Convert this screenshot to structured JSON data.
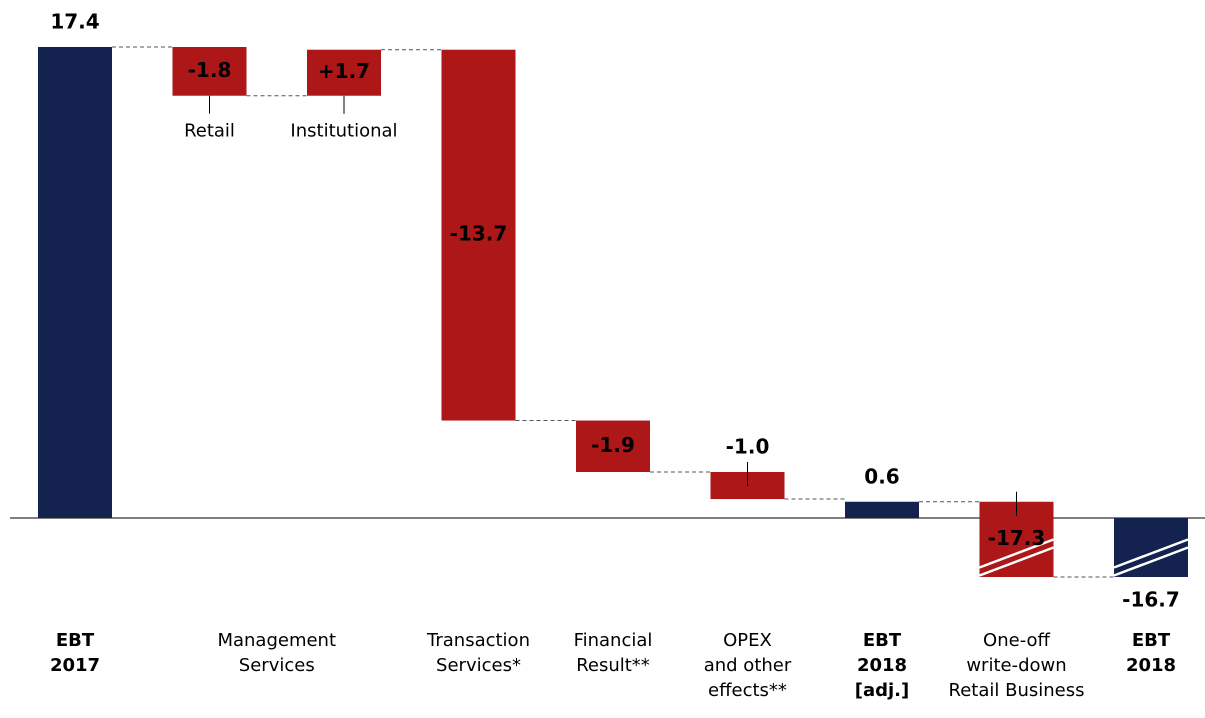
{
  "chart_data": {
    "type": "waterfall",
    "bars": [
      {
        "value": 17.4,
        "total": true,
        "color": "#13224f"
      },
      {
        "value": -1.8,
        "label": "Retail",
        "color": "#ae1717"
      },
      {
        "value": 1.7,
        "value_label": "+1.7",
        "label": "Institutional",
        "color": "#ae1717"
      },
      {
        "value": -13.7,
        "color": "#ae1717"
      },
      {
        "value": -1.9,
        "color": "#ae1717"
      },
      {
        "value": -1.0,
        "value_label": "-1.0",
        "color": "#ae1717"
      },
      {
        "value": 0.6,
        "total": true,
        "color": "#13224f"
      },
      {
        "value": -17.3,
        "color": "#ae1717"
      },
      {
        "value": -16.7,
        "total": true,
        "color": "#13224f"
      }
    ],
    "categories": [
      {
        "lines": [
          "EBT",
          "2017"
        ],
        "bold": true,
        "bars": [
          0
        ]
      },
      {
        "lines": [
          "Management",
          "Services"
        ],
        "bold": false,
        "bars": [
          1,
          2
        ]
      },
      {
        "lines": [
          "Transaction",
          "Services*"
        ],
        "bold": false,
        "bars": [
          3
        ]
      },
      {
        "lines": [
          "Financial",
          "Result**"
        ],
        "bold": false,
        "bars": [
          4
        ]
      },
      {
        "lines": [
          "OPEX",
          "and other",
          "effects**"
        ],
        "bold": false,
        "bars": [
          5
        ]
      },
      {
        "lines": [
          "EBT",
          "2018",
          "[adj.]"
        ],
        "bold": true,
        "bars": [
          6
        ]
      },
      {
        "lines": [
          "One-off",
          "write-down",
          "Retail Business"
        ],
        "bold": false,
        "bars": [
          7
        ]
      },
      {
        "lines": [
          "EBT",
          "2018"
        ],
        "bold": true,
        "bars": [
          8
        ]
      }
    ],
    "ylim": [
      -16.7,
      17.4
    ],
    "y_break": true
  }
}
